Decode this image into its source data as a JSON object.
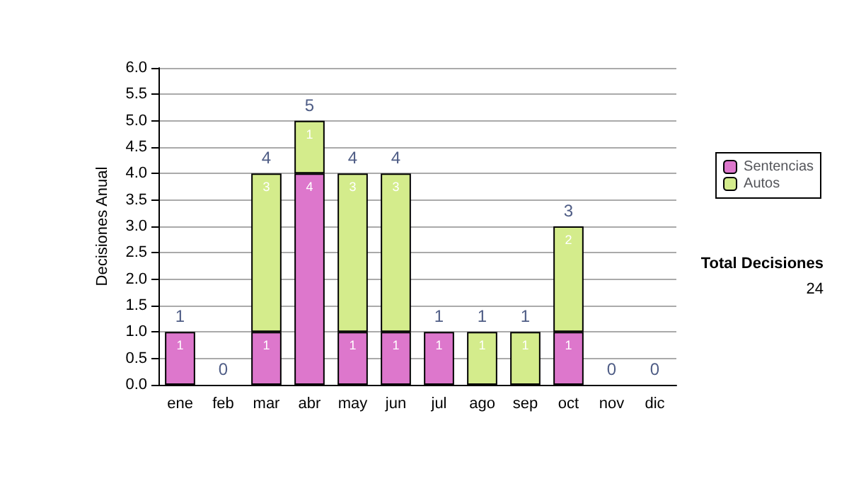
{
  "chart_data": {
    "type": "bar",
    "stacked": true,
    "ylabel": "Decisiones Anual",
    "categories": [
      "ene",
      "feb",
      "mar",
      "abr",
      "may",
      "jun",
      "jul",
      "ago",
      "sep",
      "oct",
      "nov",
      "dic"
    ],
    "series": [
      {
        "name": "Sentencias",
        "color": "#dd77cc",
        "values": [
          1,
          0,
          1,
          4,
          1,
          1,
          1,
          0,
          0,
          1,
          0,
          0
        ],
        "value_labels": [
          "1",
          null,
          "1",
          "4",
          "1",
          "1",
          "1",
          null,
          null,
          "1",
          null,
          null
        ]
      },
      {
        "name": "Autos",
        "color": "#d4ec8c",
        "values": [
          0,
          0,
          3,
          1,
          3,
          3,
          0,
          1,
          1,
          2,
          0,
          0
        ],
        "value_labels": [
          null,
          null,
          "3",
          "1",
          "3",
          "3",
          null,
          "1",
          "1",
          "2",
          null,
          null
        ]
      }
    ],
    "totals": [
      "1",
      "0",
      "4",
      "5",
      "4",
      "4",
      "1",
      "1",
      "1",
      "3",
      "0",
      "0"
    ],
    "ylim": [
      0,
      6
    ],
    "yticks": [
      {
        "value": 0,
        "label": "0.0"
      },
      {
        "value": 0.5,
        "label": "0.5"
      },
      {
        "value": 1,
        "label": "1.0"
      },
      {
        "value": 1.5,
        "label": "1.5"
      },
      {
        "value": 2,
        "label": "2.0"
      },
      {
        "value": 2.5,
        "label": "2.5"
      },
      {
        "value": 3,
        "label": "3.0"
      },
      {
        "value": 3.5,
        "label": "3.5"
      },
      {
        "value": 4,
        "label": "4.0"
      },
      {
        "value": 4.5,
        "label": "4.5"
      },
      {
        "value": 5,
        "label": "5.0"
      },
      {
        "value": 5.5,
        "label": "5.5"
      },
      {
        "value": 6,
        "label": "6.0"
      }
    ],
    "grid": "y",
    "legend": "right",
    "annotations": [
      "Total Decisiones",
      "24"
    ]
  }
}
